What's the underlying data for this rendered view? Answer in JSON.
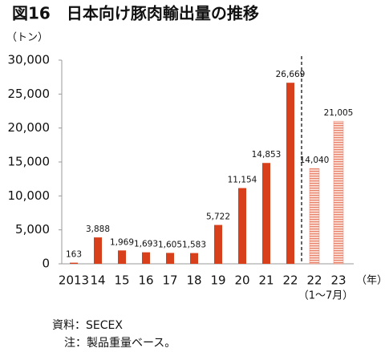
{
  "chart_data": {
    "type": "bar",
    "title": "図16　日本向け豚肉輸出量の推移",
    "y_axis_label": "（トン）",
    "x_axis_label": "（年）",
    "annotation": "（1～7月）",
    "source": "資料：SECEX",
    "note": "注：製品重量ベース。",
    "categories": [
      "2013",
      "14",
      "15",
      "16",
      "17",
      "18",
      "19",
      "20",
      "21",
      "22",
      "22",
      "23"
    ],
    "values": [
      163,
      3888,
      1969,
      1693,
      1605,
      1583,
      5722,
      11154,
      14853,
      26669,
      14040,
      21005
    ],
    "value_labels": [
      "163",
      "3,888",
      "1,969",
      "1,693",
      "1,605",
      "1,583",
      "5,722",
      "11,154",
      "14,853",
      "26,669",
      "14,040",
      "21,005"
    ],
    "colors": [
      "#d8401c",
      "#d8401c",
      "#d8401c",
      "#d8401c",
      "#d8401c",
      "#d8401c",
      "#d8401c",
      "#d8401c",
      "#d8401c",
      "#d8401c",
      "#e8826a",
      "#e8826a"
    ],
    "fill_patterns": [
      "solid",
      "solid",
      "solid",
      "solid",
      "solid",
      "solid",
      "solid",
      "solid",
      "solid",
      "solid",
      "hatch",
      "hatch"
    ],
    "ylim": [
      0,
      30000
    ],
    "yticks": [
      0,
      {
        "value": 5000,
        "label": "5,000"
      },
      {
        "value": 10000,
        "label": "10,000"
      },
      {
        "value": 15000,
        "label": "15,000"
      },
      {
        "value": 20000,
        "label": "20,000"
      },
      {
        "value": 25000,
        "label": "25,000"
      },
      {
        "value": 30000,
        "label": "30,000"
      }
    ],
    "grid": false
  }
}
